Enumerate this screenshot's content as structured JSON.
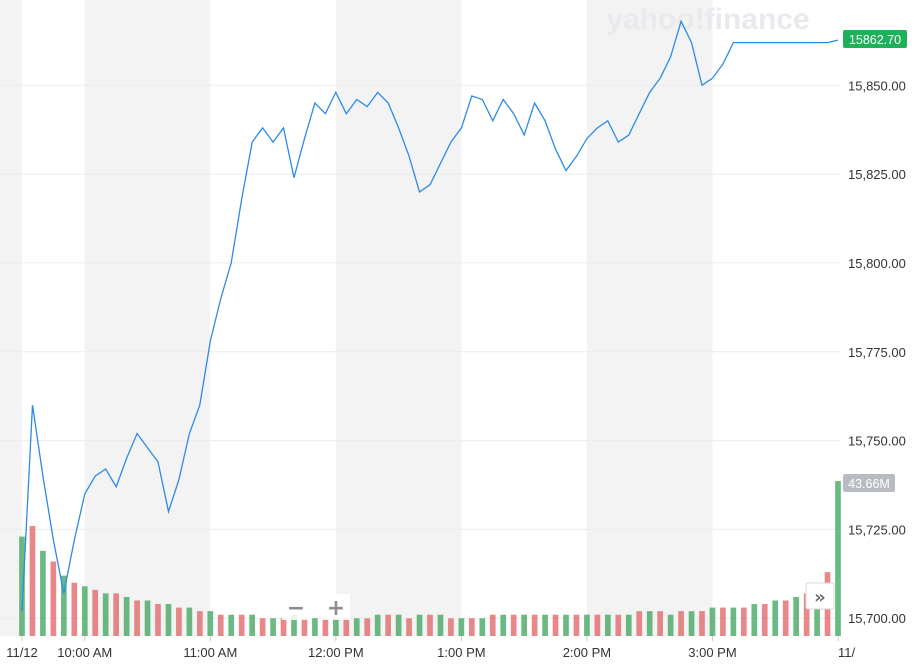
{
  "watermark": "yahoo!finance",
  "colors": {
    "line": "#2c8ae8",
    "up_volume": "#3aa35a",
    "down_volume": "#e06060",
    "price_badge": "#1db25a",
    "volume_badge": "#b8bcc2"
  },
  "controls": {
    "zoom_out": "−",
    "zoom_in": "+",
    "scroll_right": "»"
  },
  "chart_data": {
    "type": "line",
    "xlabel": "",
    "ylabel": "",
    "x_tick_labels": [
      "11/12",
      "10:00 AM",
      "11:00 AM",
      "12:00 PM",
      "1:00 PM",
      "2:00 PM",
      "3:00 PM",
      "11/"
    ],
    "y_tick_labels": [
      "15,700.00",
      "15,725.00",
      "15,750.00",
      "15,775.00",
      "15,800.00",
      "15,825.00",
      "15,850.00"
    ],
    "ylim": [
      15695,
      15874
    ],
    "grid": true,
    "price_label": "15862.70",
    "volume_label": "43.66M",
    "series": [
      {
        "type": "line",
        "x": [
          "09:30",
          "09:35",
          "09:40",
          "09:45",
          "09:50",
          "09:55",
          "10:00",
          "10:05",
          "10:10",
          "10:15",
          "10:20",
          "10:25",
          "10:30",
          "10:35",
          "10:40",
          "10:45",
          "10:50",
          "10:55",
          "11:00",
          "11:05",
          "11:10",
          "11:15",
          "11:20",
          "11:25",
          "11:30",
          "11:35",
          "11:40",
          "11:45",
          "11:50",
          "11:55",
          "12:00",
          "12:05",
          "12:10",
          "12:15",
          "12:20",
          "12:25",
          "12:30",
          "12:35",
          "12:40",
          "12:45",
          "12:50",
          "12:55",
          "13:00",
          "13:05",
          "13:10",
          "13:15",
          "13:20",
          "13:25",
          "13:30",
          "13:35",
          "13:40",
          "13:45",
          "13:50",
          "13:55",
          "14:00",
          "14:05",
          "14:10",
          "14:15",
          "14:20",
          "14:25",
          "14:30",
          "14:35",
          "14:40",
          "14:45",
          "14:50",
          "14:55",
          "15:00",
          "15:05",
          "15:10",
          "15:15",
          "15:20",
          "15:25",
          "15:30",
          "15:35",
          "15:40",
          "15:45",
          "15:50",
          "15:55",
          "16:00"
        ],
        "values": [
          15702,
          15760,
          15740,
          15722,
          15707,
          15722,
          15735,
          15740,
          15742,
          15737,
          15745,
          15752,
          15748,
          15744,
          15730,
          15739,
          15752,
          15760,
          15778,
          15790,
          15800,
          15818,
          15834,
          15838,
          15834,
          15838,
          15824,
          15835,
          15845,
          15842,
          15848,
          15842,
          15846,
          15844,
          15848,
          15845,
          15838,
          15830,
          15820,
          15822,
          15828,
          15834,
          15838,
          15847,
          15846,
          15840,
          15846,
          15842,
          15836,
          15845,
          15840,
          15832,
          15826,
          15830,
          15835,
          15838,
          15840,
          15834,
          15836,
          15842,
          15848,
          15852,
          15858,
          15868,
          15862,
          15850,
          15852,
          15856,
          15862,
          15862,
          15862,
          15862,
          15862,
          15862,
          15862,
          15862,
          15862,
          15862,
          15862.7
        ]
      },
      {
        "type": "bar",
        "name": "",
        "note_unit": "M",
        "x": [
          "09:30",
          "09:35",
          "09:40",
          "09:45",
          "09:50",
          "09:55",
          "10:00",
          "10:05",
          "10:10",
          "10:15",
          "10:20",
          "10:25",
          "10:30",
          "10:35",
          "10:40",
          "10:45",
          "10:50",
          "10:55",
          "11:00",
          "11:05",
          "11:10",
          "11:15",
          "11:20",
          "11:25",
          "11:30",
          "11:35",
          "11:40",
          "11:45",
          "11:50",
          "11:55",
          "12:00",
          "12:05",
          "12:10",
          "12:15",
          "12:20",
          "12:25",
          "12:30",
          "12:35",
          "12:40",
          "12:45",
          "12:50",
          "12:55",
          "13:00",
          "13:05",
          "13:10",
          "13:15",
          "13:20",
          "13:25",
          "13:30",
          "13:35",
          "13:40",
          "13:45",
          "13:50",
          "13:55",
          "14:00",
          "14:05",
          "14:10",
          "14:15",
          "14:20",
          "14:25",
          "14:30",
          "14:35",
          "14:40",
          "14:45",
          "14:50",
          "14:55",
          "15:00",
          "15:05",
          "15:10",
          "15:15",
          "15:20",
          "15:25",
          "15:30",
          "15:35",
          "15:40",
          "15:45",
          "15:50",
          "15:55",
          "16:00"
        ],
        "values": [
          28,
          31,
          24,
          21,
          17,
          15,
          14,
          13,
          12,
          12,
          11,
          10,
          10,
          9,
          9,
          8,
          8,
          7,
          7,
          6,
          6,
          6,
          6,
          5,
          5,
          5,
          6,
          5,
          5,
          5,
          5,
          5,
          5,
          5,
          6,
          6,
          6,
          5,
          6,
          6,
          6,
          5,
          5,
          5,
          5,
          6,
          6,
          6,
          6,
          6,
          6,
          6,
          6,
          6,
          6,
          6,
          6,
          6,
          6,
          7,
          7,
          7,
          6,
          7,
          7,
          7,
          8,
          8,
          8,
          8,
          9,
          9,
          10,
          10,
          11,
          12,
          14,
          18,
          43.66
        ],
        "direction": [
          "up",
          "down",
          "up",
          "down",
          "up",
          "down",
          "up",
          "down",
          "up",
          "down",
          "up",
          "down",
          "up",
          "down",
          "up",
          "down",
          "up",
          "down",
          "up",
          "down",
          "up",
          "down",
          "up",
          "down",
          "up",
          "down",
          "up",
          "down",
          "up",
          "down",
          "up",
          "down",
          "up",
          "down",
          "up",
          "down",
          "up",
          "down",
          "up",
          "down",
          "up",
          "down",
          "up",
          "down",
          "up",
          "down",
          "up",
          "down",
          "up",
          "down",
          "up",
          "down",
          "up",
          "down",
          "up",
          "down",
          "up",
          "down",
          "up",
          "down",
          "up",
          "down",
          "up",
          "down",
          "up",
          "down",
          "up",
          "down",
          "up",
          "down",
          "up",
          "down",
          "up",
          "down",
          "up",
          "down",
          "up",
          "down",
          "up"
        ]
      }
    ]
  }
}
